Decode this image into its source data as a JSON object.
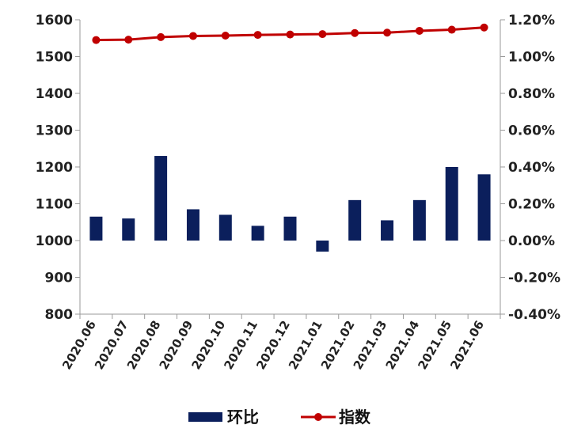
{
  "chart_data": {
    "type": "bar+line",
    "categories": [
      "2020.06",
      "2020.07",
      "2020.08",
      "2020.09",
      "2020.10",
      "2020.11",
      "2020.12",
      "2021.01",
      "2021.02",
      "2021.03",
      "2021.04",
      "2021.05",
      "2021.06"
    ],
    "series": [
      {
        "name": "环比",
        "type": "bar",
        "axis": "right",
        "values": [
          0.13,
          0.12,
          0.46,
          0.17,
          0.14,
          0.08,
          0.13,
          -0.06,
          0.22,
          0.11,
          0.22,
          0.4,
          0.36
        ]
      },
      {
        "name": "指数",
        "type": "line",
        "axis": "left",
        "values": [
          1545,
          1546,
          1553,
          1556,
          1557,
          1559,
          1560,
          1561,
          1564,
          1565,
          1570,
          1573,
          1579
        ]
      }
    ],
    "left_axis": {
      "ylim": [
        800,
        1600
      ],
      "ticks": [
        "800",
        "900",
        "1000",
        "1100",
        "1200",
        "1300",
        "1400",
        "1500",
        "1600"
      ]
    },
    "right_axis": {
      "ylim": [
        -0.4,
        1.2
      ],
      "ticks": [
        "-0.40%",
        "-0.20%",
        "0.00%",
        "0.20%",
        "0.40%",
        "0.60%",
        "0.80%",
        "1.00%",
        "1.20%"
      ]
    },
    "grid": false,
    "legend_position": "bottom",
    "colors": {
      "bar": "#0b1f5c",
      "line": "#c00000",
      "axis": "#999999"
    }
  }
}
